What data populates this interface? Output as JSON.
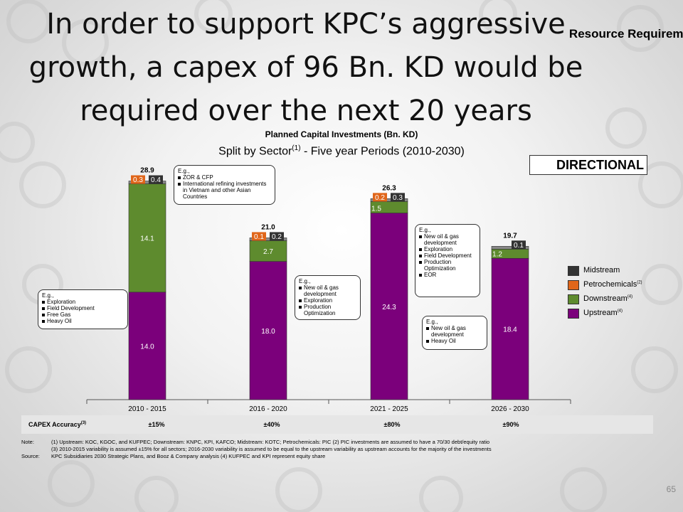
{
  "slide": {
    "title": "In order to support KPC’s aggressive growth, a capex of 96 Bn. KD would be required over the next 20 years",
    "top_right_label": "Resource Requireme",
    "directional_label": "DIRECTIONAL",
    "page_number": "65"
  },
  "chart_data": {
    "type": "bar",
    "stacked": true,
    "title": "Planned Capital Investments (Bn. KD)",
    "subtitle_main": "Split by Sector",
    "subtitle_sup": "(1)",
    "subtitle_rest": " - Five year Periods (2010-2030)",
    "categories": [
      "2010 - 2015",
      "2016 - 2020",
      "2021 - 2025",
      "2026 - 2030"
    ],
    "totals": [
      "28.9",
      "21.0",
      "26.3",
      "19.7"
    ],
    "series": [
      {
        "name": "Upstream",
        "values": [
          14.0,
          18.0,
          24.3,
          18.4
        ],
        "labels": [
          "14.0",
          "18.0",
          "24.3",
          "18.4"
        ],
        "color": "#7b007b"
      },
      {
        "name": "Downstream",
        "values": [
          14.1,
          2.7,
          1.5,
          1.2
        ],
        "labels": [
          "14.1",
          "2.7",
          "1.5",
          "1.2"
        ],
        "color": "#5e8b2e"
      },
      {
        "name": "Petrochemicals",
        "values": [
          0.3,
          0.1,
          0.2,
          0.0
        ],
        "labels": [
          "0.3",
          "0.1",
          "0.2",
          ""
        ],
        "color": "#e0661a"
      },
      {
        "name": "Midstream",
        "values": [
          0.4,
          0.2,
          0.3,
          0.1
        ],
        "labels": [
          "0.4",
          "0.2",
          "0.3",
          "0.1"
        ],
        "color": "#333333"
      }
    ],
    "legend": [
      {
        "label": "Midstream",
        "sup": "",
        "color": "#333333"
      },
      {
        "label": "Petrochemicals",
        "sup": "(2)",
        "color": "#e0661a"
      },
      {
        "label": "Downstream",
        "sup": "(4)",
        "color": "#5e8b2e"
      },
      {
        "label": "Upstream",
        "sup": "(4)",
        "color": "#7b007b"
      }
    ],
    "legend_position": "right",
    "ylim": [
      0,
      30
    ]
  },
  "callouts": [
    {
      "title": "E.g.,",
      "items": [
        "ZOR & CFP",
        "International refining investments in Vietnam and other Asian Countries"
      ]
    },
    {
      "title": "E.g.,",
      "items": [
        "Exploration",
        "Field Development",
        "Free Gas",
        "Heavy Oil"
      ]
    },
    {
      "title": "E.g.,",
      "items": [
        "New oil & gas development",
        "Exploration",
        "Production Optimization"
      ]
    },
    {
      "title": "E.g.,",
      "items": [
        "New oil & gas development",
        "Exploration",
        "Field Development",
        "Production Optimization",
        "EOR"
      ]
    },
    {
      "title": "E.g.,",
      "items": [
        "New oil & gas development",
        "Heavy Oil"
      ]
    }
  ],
  "accuracy": {
    "label": "CAPEX Accuracy",
    "label_sup": "(3)",
    "values": [
      "±15%",
      "±40%",
      "±80%",
      "±90%"
    ]
  },
  "notes": {
    "note_key": "Note:",
    "note_line1": "(1) Upstream: KOC, KGOC, and KUFPEC; Downstream: KNPC, KPI, KAFCO; Midstream: KOTC; Petrochemicals: PIC  (2) PIC investments are assumed to have a 70/30 debt/equity ratio",
    "note_line2": "(3) 2010-2015 variability is assumed ±15% for all sectors;  2016-2030 variability is assumed to be equal to the upstream variability  as upstream accounts for the majority of the investments",
    "source_key": "Source:",
    "source_line": "KPC Subsidiaries 2030 Strategic Plans, and Booz & Company analysis (4) KUFPEC and KPI  represent equity share"
  }
}
